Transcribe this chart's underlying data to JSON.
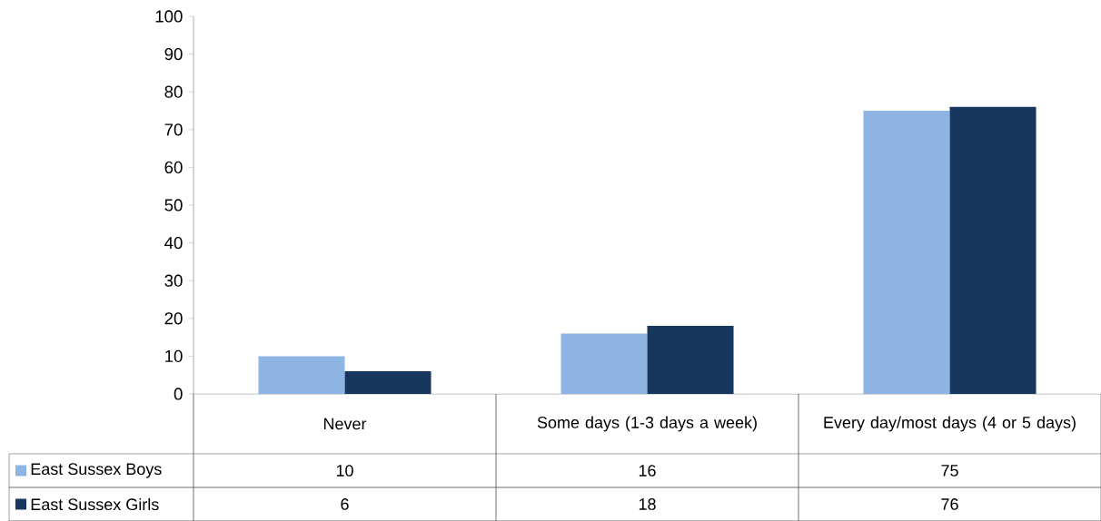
{
  "chart_data": {
    "type": "bar",
    "categories": [
      "Never",
      "Some days (1-3 days a week)",
      "Every day/most days (4 or 5 days)"
    ],
    "series": [
      {
        "name": "East Sussex Boys",
        "color": "#8eb4e3",
        "values": [
          10,
          16,
          75
        ]
      },
      {
        "name": "East Sussex Girls",
        "color": "#17375e",
        "values": [
          6,
          18,
          76
        ]
      }
    ],
    "ylim": [
      0,
      100
    ],
    "yticks": [
      0,
      10,
      20,
      30,
      40,
      50,
      60,
      70,
      80,
      90,
      100
    ],
    "grid": false,
    "legend": "bottom",
    "data_labels": true
  }
}
